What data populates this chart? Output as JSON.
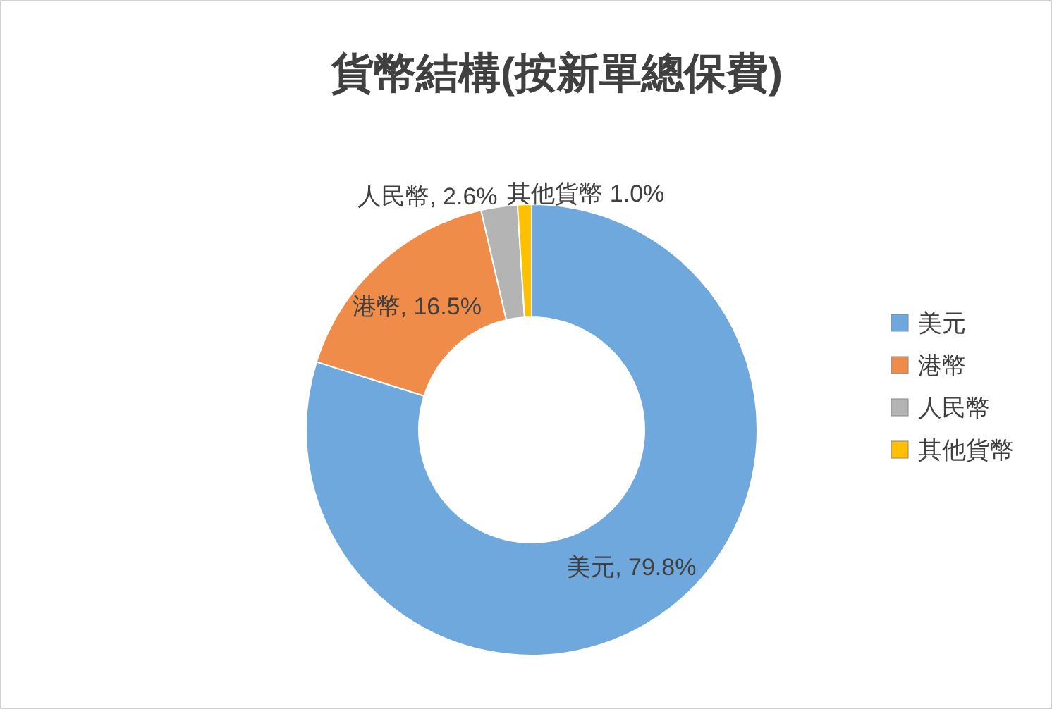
{
  "chart_data": {
    "type": "donut",
    "title": "貨幣結構(按新單總保費)",
    "categories": [
      "美元",
      "港幣",
      "人民幣",
      "其他貨幣"
    ],
    "values": [
      79.8,
      16.5,
      2.6,
      1.0
    ],
    "colors": [
      "#6fa8dc",
      "#f08c4a",
      "#b4b4b4",
      "#ffc000"
    ],
    "value_labels": [
      "美元, 79.8%",
      "港幣, 16.5%",
      "人民幣, 2.6%",
      "其他貨幣  1.0%"
    ],
    "legend": "right"
  }
}
